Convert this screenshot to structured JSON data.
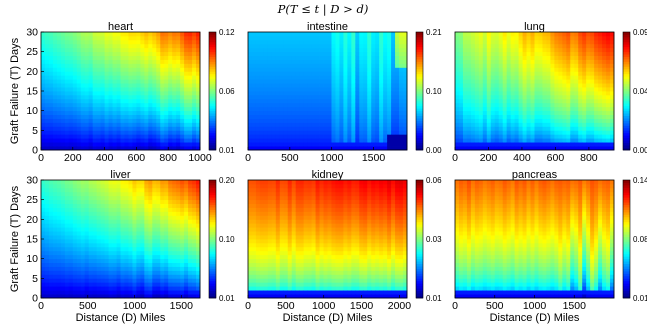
{
  "figure": {
    "title": "P(T ≤ t | D > d)",
    "xlabel": "Distance (D) Miles",
    "ylabel": "Graft Failure (T) Days"
  },
  "chart_data": [
    {
      "type": "heatmap",
      "title": "heart",
      "xlim": [
        0,
        1000
      ],
      "ylim": [
        0,
        30
      ],
      "xticks": [
        0,
        200,
        400,
        600,
        800,
        1000
      ],
      "yticks": [
        0,
        5,
        10,
        15,
        20,
        25,
        30
      ],
      "colorbar": {
        "range": [
          0.01,
          0.12
        ],
        "ticks": [
          "0.01",
          "0.06",
          "0.12"
        ]
      },
      "xlabel": "",
      "ylabel": "Graft Failure (T) Days",
      "pattern": "diagonal",
      "stripe_x": 800
    },
    {
      "type": "heatmap",
      "title": "intestine",
      "xlim": [
        0,
        1900
      ],
      "ylim": [
        0,
        30
      ],
      "xticks": [
        0,
        500,
        1000,
        1500
      ],
      "yticks": [],
      "colorbar": {
        "range": [
          0.0,
          0.21
        ],
        "ticks": [
          "0.00",
          "0.10",
          "0.21"
        ]
      },
      "xlabel": "",
      "ylabel": "",
      "pattern": "intestine",
      "stripe_x": 1000
    },
    {
      "type": "heatmap",
      "title": "lung",
      "xlim": [
        0,
        950
      ],
      "ylim": [
        0,
        30
      ],
      "xticks": [
        0,
        200,
        400,
        600,
        800
      ],
      "yticks": [],
      "colorbar": {
        "range": [
          0.0,
          0.09
        ],
        "ticks": [
          "0.00",
          "0.04",
          "0.09"
        ]
      },
      "xlabel": "",
      "ylabel": "",
      "pattern": "lung",
      "stripe_x": 650
    },
    {
      "type": "heatmap",
      "title": "liver",
      "xlim": [
        0,
        1700
      ],
      "ylim": [
        0,
        30
      ],
      "xticks": [
        0,
        500,
        1000,
        1500
      ],
      "yticks": [
        0,
        5,
        10,
        15,
        20,
        25,
        30
      ],
      "colorbar": {
        "range": [
          0.01,
          0.2
        ],
        "ticks": [
          "0.01",
          "0.10",
          "0.20"
        ]
      },
      "xlabel": "Distance (D) Miles",
      "ylabel": "Graft Failure (T) Days",
      "pattern": "diagonal",
      "stripe_x": 1100
    },
    {
      "type": "heatmap",
      "title": "kidney",
      "xlim": [
        0,
        2100
      ],
      "ylim": [
        0,
        30
      ],
      "xticks": [
        0,
        500,
        1000,
        1500,
        2000
      ],
      "yticks": [],
      "colorbar": {
        "range": [
          0.01,
          0.06
        ],
        "ticks": [
          "0.01",
          "0.03",
          "0.06"
        ]
      },
      "xlabel": "Distance (D) Miles",
      "ylabel": "",
      "pattern": "kidney",
      "stripe_x": 1300
    },
    {
      "type": "heatmap",
      "title": "pancreas",
      "xlim": [
        0,
        2000
      ],
      "ylim": [
        0,
        30
      ],
      "xticks": [
        0,
        500,
        1000,
        1500
      ],
      "yticks": [],
      "colorbar": {
        "range": [
          0.01,
          0.14
        ],
        "ticks": [
          "0.01",
          "0.08",
          "0.14"
        ]
      },
      "xlabel": "Distance (D) Miles",
      "ylabel": "",
      "pattern": "pancreas",
      "stripe_x": 1350
    }
  ]
}
